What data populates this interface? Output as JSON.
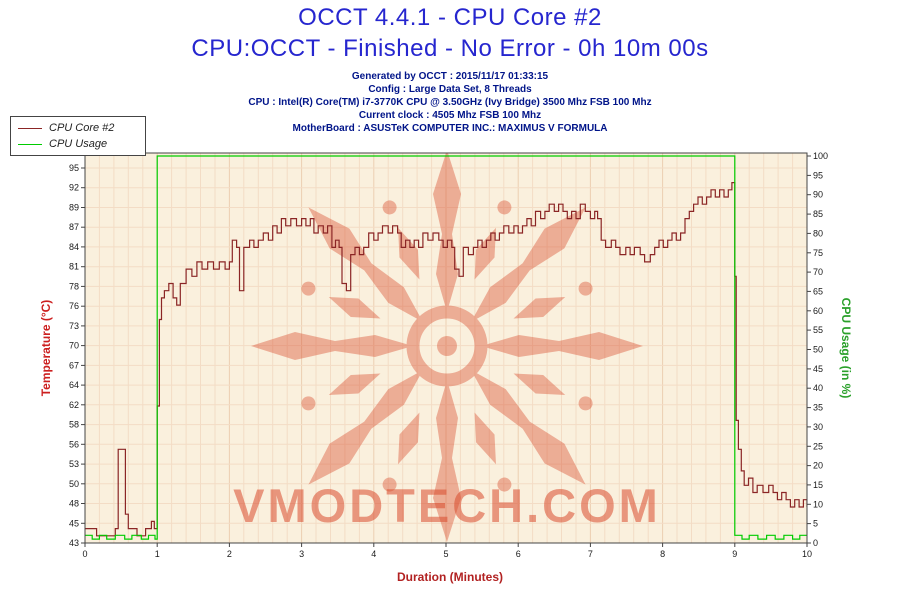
{
  "header": {
    "title": "OCCT 4.4.1 - CPU Core #2",
    "subtitle": "CPU:OCCT - Finished - No Error - 0h 10m 00s",
    "info_lines": [
      "Generated by OCCT : 2015/11/17 01:33:15",
      "Config : Large Data Set, 8 Threads",
      "CPU : Intel(R) Core(TM) i7-3770K CPU @ 3.50GHz (Ivy Bridge) 3500 Mhz FSB 100 Mhz",
      "Current clock : 4505 Mhz FSB 100 Mhz",
      "MotherBoard : ASUSTeK COMPUTER INC.: MAXIMUS V FORMULA"
    ]
  },
  "legend": {
    "items": [
      {
        "label": "CPU Core #2",
        "color": "#8b2525"
      },
      {
        "label": "CPU Usage",
        "color": "#00cc00"
      }
    ]
  },
  "watermark": {
    "text": "VMODTECH.COM",
    "color": "#d94a2c"
  },
  "chart_data": {
    "type": "line",
    "title": "OCCT 4.4.1 - CPU Core #2",
    "subtitle": "CPU:OCCT - Finished - No Error - 0h 10m 00s",
    "xlabel": "Duration (Minutes)",
    "ylabel_left": "Temperature (°C)",
    "ylabel_right": "CPU Usage (in %)",
    "grid": true,
    "legend_position": "top-left",
    "plot_background": "#faf0dd",
    "grid_color": "#f3dcc5",
    "grid_major_color": "#eccfb2",
    "xlim": [
      0,
      10
    ],
    "x_ticks": [
      0,
      1,
      2,
      3,
      4,
      5,
      6,
      7,
      8,
      9,
      10
    ],
    "x_minor_step": 0.2,
    "temp_axis": {
      "min": 43,
      "max": 97.1
    },
    "usage_axis": {
      "min": 0,
      "max": 100
    },
    "left_ticks": [
      43,
      45,
      48,
      50,
      53,
      56,
      58,
      62,
      64,
      67,
      70,
      73,
      76,
      78,
      81,
      84,
      87,
      89,
      92,
      95
    ],
    "right_ticks": [
      0,
      5,
      10,
      15,
      20,
      25,
      30,
      35,
      40,
      45,
      50,
      55,
      60,
      65,
      70,
      75,
      80,
      85,
      90,
      95,
      100
    ],
    "series": [
      {
        "name": "CPU Core #2",
        "axis": "left",
        "color": "#8b2525",
        "unit": "°C",
        "points": [
          [
            0,
            45
          ],
          [
            0.12,
            45
          ],
          [
            0.16,
            44
          ],
          [
            0.38,
            44
          ],
          [
            0.42,
            45
          ],
          [
            0.46,
            56
          ],
          [
            0.53,
            56
          ],
          [
            0.56,
            47
          ],
          [
            0.6,
            45
          ],
          [
            0.72,
            44
          ],
          [
            0.84,
            45
          ],
          [
            0.92,
            46
          ],
          [
            0.96,
            45
          ],
          [
            1.0,
            62
          ],
          [
            1.03,
            74
          ],
          [
            1.06,
            77
          ],
          [
            1.1,
            78
          ],
          [
            1.16,
            79
          ],
          [
            1.22,
            77
          ],
          [
            1.27,
            76
          ],
          [
            1.32,
            79
          ],
          [
            1.4,
            81
          ],
          [
            1.48,
            80
          ],
          [
            1.55,
            82
          ],
          [
            1.62,
            81
          ],
          [
            1.7,
            82
          ],
          [
            1.78,
            81
          ],
          [
            1.86,
            82
          ],
          [
            1.94,
            81
          ],
          [
            2.0,
            82
          ],
          [
            2.04,
            85
          ],
          [
            2.1,
            84
          ],
          [
            2.14,
            78
          ],
          [
            2.2,
            84
          ],
          [
            2.28,
            85
          ],
          [
            2.34,
            84
          ],
          [
            2.4,
            85
          ],
          [
            2.47,
            86
          ],
          [
            2.54,
            85
          ],
          [
            2.6,
            87
          ],
          [
            2.66,
            86
          ],
          [
            2.72,
            88
          ],
          [
            2.78,
            87
          ],
          [
            2.85,
            88
          ],
          [
            2.93,
            87
          ],
          [
            3.0,
            88
          ],
          [
            3.06,
            87
          ],
          [
            3.12,
            88
          ],
          [
            3.17,
            86
          ],
          [
            3.23,
            87
          ],
          [
            3.3,
            86
          ],
          [
            3.36,
            87
          ],
          [
            3.42,
            84
          ],
          [
            3.47,
            85
          ],
          [
            3.52,
            84
          ],
          [
            3.56,
            79
          ],
          [
            3.62,
            78
          ],
          [
            3.68,
            83
          ],
          [
            3.74,
            84
          ],
          [
            3.8,
            83
          ],
          [
            3.86,
            84
          ],
          [
            3.93,
            86
          ],
          [
            4.0,
            85
          ],
          [
            4.06,
            86
          ],
          [
            4.12,
            87
          ],
          [
            4.2,
            86
          ],
          [
            4.26,
            87
          ],
          [
            4.33,
            86
          ],
          [
            4.38,
            84
          ],
          [
            4.44,
            85
          ],
          [
            4.5,
            84
          ],
          [
            4.56,
            85
          ],
          [
            4.62,
            84
          ],
          [
            4.68,
            86
          ],
          [
            4.75,
            85
          ],
          [
            4.82,
            86
          ],
          [
            4.9,
            85
          ],
          [
            4.96,
            84
          ],
          [
            5.02,
            85
          ],
          [
            5.08,
            84
          ],
          [
            5.12,
            81
          ],
          [
            5.18,
            80
          ],
          [
            5.24,
            84
          ],
          [
            5.31,
            83
          ],
          [
            5.38,
            84
          ],
          [
            5.44,
            85
          ],
          [
            5.5,
            84
          ],
          [
            5.56,
            85
          ],
          [
            5.62,
            86
          ],
          [
            5.68,
            85
          ],
          [
            5.74,
            86
          ],
          [
            5.8,
            87
          ],
          [
            5.87,
            86
          ],
          [
            5.94,
            87
          ],
          [
            6.0,
            86
          ],
          [
            6.06,
            87
          ],
          [
            6.12,
            88
          ],
          [
            6.18,
            87
          ],
          [
            6.24,
            89
          ],
          [
            6.31,
            88
          ],
          [
            6.37,
            89
          ],
          [
            6.43,
            90
          ],
          [
            6.5,
            89
          ],
          [
            6.56,
            90
          ],
          [
            6.62,
            89
          ],
          [
            6.68,
            88
          ],
          [
            6.74,
            89
          ],
          [
            6.8,
            88
          ],
          [
            6.86,
            90
          ],
          [
            6.93,
            89
          ],
          [
            7.0,
            88
          ],
          [
            7.06,
            89
          ],
          [
            7.1,
            88
          ],
          [
            7.15,
            85
          ],
          [
            7.21,
            84
          ],
          [
            7.29,
            85
          ],
          [
            7.35,
            84
          ],
          [
            7.41,
            83
          ],
          [
            7.49,
            84
          ],
          [
            7.55,
            83
          ],
          [
            7.61,
            84
          ],
          [
            7.69,
            83
          ],
          [
            7.75,
            82
          ],
          [
            7.83,
            83
          ],
          [
            7.89,
            84
          ],
          [
            7.95,
            85
          ],
          [
            8.01,
            84
          ],
          [
            8.07,
            85
          ],
          [
            8.13,
            86
          ],
          [
            8.19,
            85
          ],
          [
            8.25,
            86
          ],
          [
            8.31,
            88
          ],
          [
            8.37,
            89
          ],
          [
            8.43,
            90
          ],
          [
            8.49,
            91
          ],
          [
            8.55,
            90
          ],
          [
            8.61,
            91
          ],
          [
            8.67,
            92
          ],
          [
            8.73,
            91
          ],
          [
            8.79,
            92
          ],
          [
            8.85,
            91
          ],
          [
            8.91,
            92
          ],
          [
            8.96,
            93
          ],
          [
            9.0,
            80
          ],
          [
            9.02,
            60
          ],
          [
            9.05,
            56
          ],
          [
            9.09,
            53
          ],
          [
            9.13,
            51
          ],
          [
            9.19,
            52
          ],
          [
            9.25,
            50
          ],
          [
            9.31,
            51
          ],
          [
            9.39,
            50
          ],
          [
            9.47,
            51
          ],
          [
            9.53,
            50
          ],
          [
            9.59,
            49
          ],
          [
            9.65,
            50
          ],
          [
            9.71,
            49
          ],
          [
            9.77,
            48
          ],
          [
            9.83,
            49
          ],
          [
            9.89,
            48
          ],
          [
            9.95,
            49
          ],
          [
            10,
            48
          ]
        ]
      },
      {
        "name": "CPU Usage",
        "axis": "right",
        "color": "#00cc00",
        "unit": "%",
        "points": [
          [
            0,
            2
          ],
          [
            0.1,
            1
          ],
          [
            0.2,
            2
          ],
          [
            0.3,
            1
          ],
          [
            0.42,
            2
          ],
          [
            0.55,
            1
          ],
          [
            0.65,
            2
          ],
          [
            0.78,
            1
          ],
          [
            0.88,
            2
          ],
          [
            0.97,
            1
          ],
          [
            1.0,
            100
          ],
          [
            8.98,
            100
          ],
          [
            9.0,
            2
          ],
          [
            9.1,
            1
          ],
          [
            9.2,
            2
          ],
          [
            9.32,
            1
          ],
          [
            9.44,
            2
          ],
          [
            9.56,
            1
          ],
          [
            9.68,
            2
          ],
          [
            9.8,
            1
          ],
          [
            9.9,
            2
          ],
          [
            10,
            2
          ]
        ]
      }
    ]
  }
}
